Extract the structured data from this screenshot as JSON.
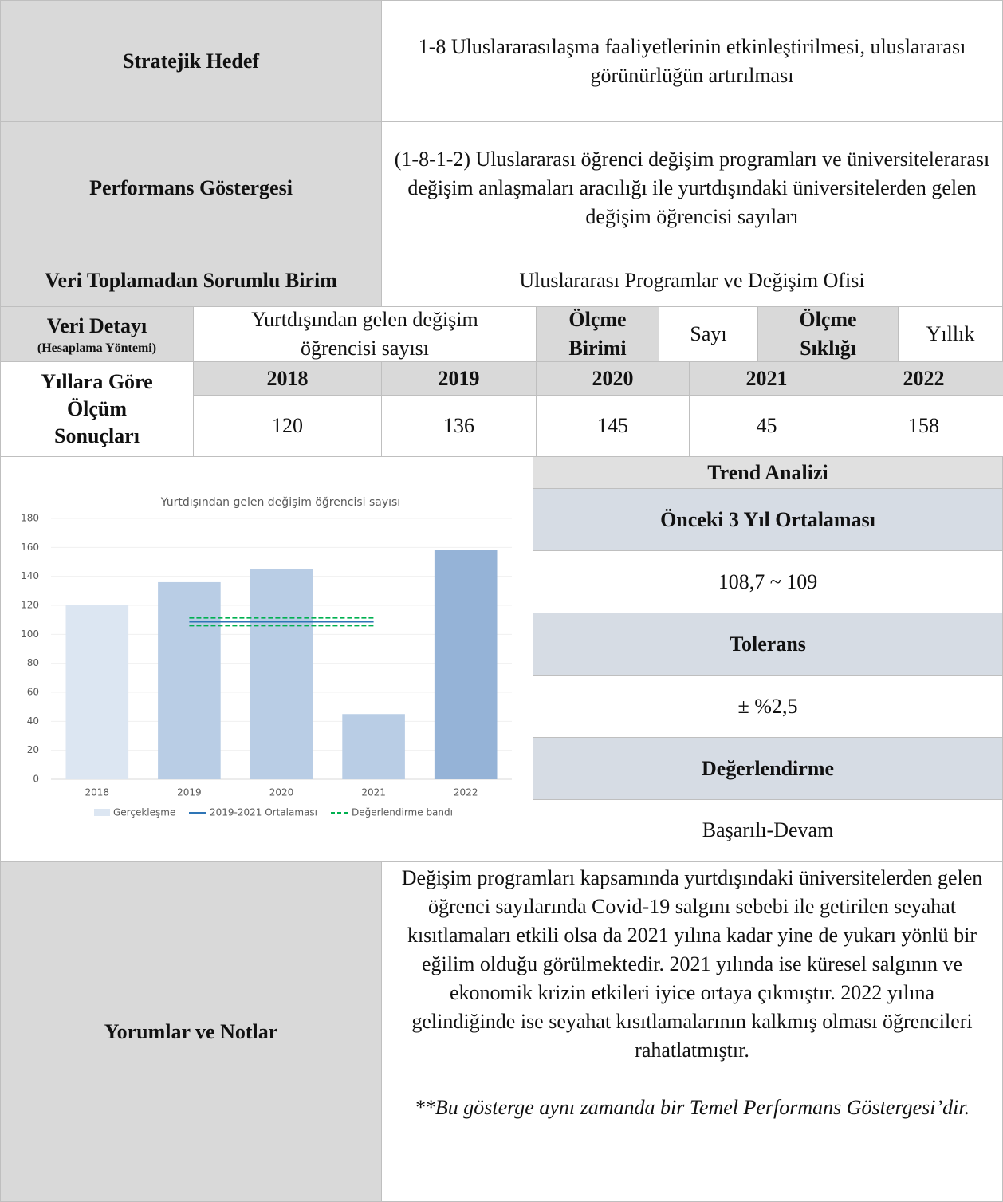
{
  "strategic_goal": {
    "label": "Stratejik Hedef",
    "text": "1-8 Uluslararasılaşma faaliyetlerinin etkinleştirilmesi, uluslararası görünürlüğün artırılması"
  },
  "indicator": {
    "label": "Performans Göstergesi",
    "text": "(1-8-1-2) Uluslararası öğrenci değişim programları ve üniversitelerarası değişim anlaşmaları aracılığı ile yurtdışındaki üniversitelerden gelen değişim öğrencisi sayıları"
  },
  "responsible_unit": {
    "label": "Veri Toplamadan Sorumlu Birim",
    "text": "Uluslararası Programlar ve Değişim Ofisi"
  },
  "data_detail": {
    "label": "Veri Detayı",
    "sublabel": "(Hesaplama Yöntemi)",
    "text": "Yurtdışından gelen değişim öğrencisi sayısı",
    "unit_label": "Ölçme Birimi",
    "unit": "Sayı",
    "frequency_label": "Ölçme Sıklığı",
    "frequency": "Yıllık"
  },
  "results": {
    "label": "Yıllara Göre Ölçüm Sonuçları",
    "years": [
      "2018",
      "2019",
      "2020",
      "2021",
      "2022"
    ],
    "values": [
      120,
      136,
      145,
      45,
      158
    ]
  },
  "trend": {
    "title": "Trend Analizi",
    "avg_label": "Önceki 3 Yıl Ortalaması",
    "avg": "108,7 ~ 109",
    "tolerance_label": "Tolerans",
    "tolerance": "± %2,5",
    "evaluation_label": "Değerlendirme",
    "evaluation": "Başarılı-Devam"
  },
  "comments": {
    "label": "Yorumlar ve Notlar",
    "text": "Değişim programları kapsamında yurtdışındaki üniversitelerden gelen öğrenci sayılarında Covid-19 salgını sebebi ile getirilen seyahat kısıtlamaları etkili olsa da 2021 yılına kadar yine de yukarı yönlü bir eğilim olduğu görülmektedir. 2021 yılında ise küresel salgının ve ekonomik krizin etkileri iyice ortaya çıkmıştır. 2022 yılına gelindiğinde ise seyahat kısıtlamalarının kalkmış olması öğrencileri rahatlatmıştır.",
    "note": "**Bu gösterge aynı zamanda bir Temel Performans Göstergesi’dir."
  },
  "chart_data": {
    "type": "bar",
    "title": "Yurtdışından gelen değişim öğrencisi sayısı",
    "categories": [
      "2018",
      "2019",
      "2020",
      "2021",
      "2022"
    ],
    "ylim": [
      0,
      180
    ],
    "yticks": [
      0,
      20,
      40,
      60,
      80,
      100,
      120,
      140,
      160,
      180
    ],
    "grid": true,
    "series": [
      {
        "name": "Gerçekleşme",
        "color": "#dce6f2",
        "colors": [
          "#dce6f2",
          "#b9cde5",
          "#b9cde5",
          "#b9cde5",
          "#95b3d7"
        ],
        "values": [
          120,
          136,
          145,
          45,
          158
        ]
      },
      {
        "name": "2019-2021 Ortalaması",
        "type": "line",
        "color": "#2e75b6",
        "values": [
          null,
          108.7,
          108.7,
          108.7,
          null
        ]
      },
      {
        "name": "Değerlendirme bandı",
        "type": "band",
        "color": "#00b050",
        "values": [
          null,
          111.4,
          111.4,
          111.4,
          null
        ],
        "lower": [
          null,
          106,
          106,
          106,
          null
        ]
      }
    ]
  }
}
